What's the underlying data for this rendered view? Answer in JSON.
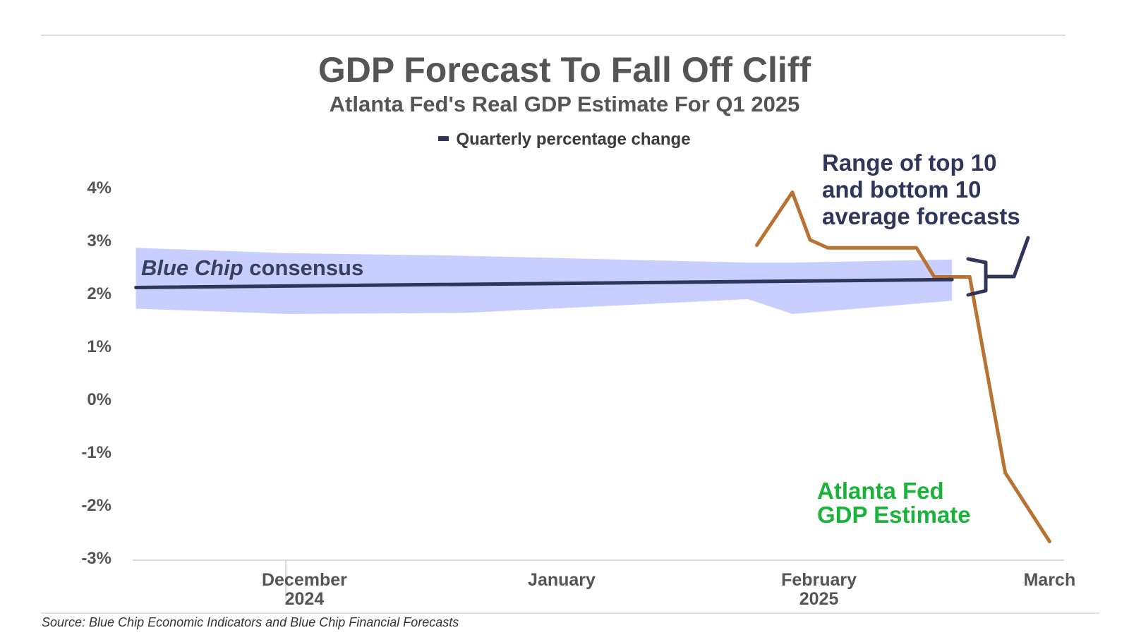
{
  "header": {
    "title": "GDP Forecast To Fall Off Cliff",
    "subtitle": "Atlanta Fed's Real GDP Estimate For Q1 2025",
    "legend_label": "Quarterly percentage change"
  },
  "footer": {
    "source": "Source: Blue Chip Economic Indicators and Blue Chip Financial Forecasts"
  },
  "annotations": {
    "consensus_italic": "Blue Chip",
    "consensus_rest": " consensus",
    "range_line1": "Range of top 10",
    "range_line2": "and bottom 10",
    "range_line3": "average forecasts",
    "atlanta_line1": "Atlanta Fed",
    "atlanta_line2": "GDP Estimate"
  },
  "colors": {
    "consensus_line": "#2f3659",
    "range_band": "#c8cfff",
    "atlanta_line": "#b87333",
    "atlanta_label": "#19b33a",
    "axis_text": "#555555",
    "axis_line": "#d9d9d9"
  },
  "chart_data": {
    "type": "line",
    "title": "GDP Forecast To Fall Off Cliff",
    "subtitle": "Atlanta Fed's Real GDP Estimate For Q1 2025",
    "ylabel": "",
    "xlabel": "",
    "ylim": [
      -3,
      4
    ],
    "y_ticks": [
      4,
      3,
      2,
      1,
      0,
      -1,
      -2,
      -3
    ],
    "y_tick_labels": [
      "4%",
      "3%",
      "2%",
      "1%",
      "0%",
      "-1%",
      "-2%",
      "-3%"
    ],
    "x_range": [
      "2024-11-24",
      "2025-03-09"
    ],
    "x_ticks": [
      {
        "line1": "December",
        "line2": "2024",
        "date": "2024-12-14"
      },
      {
        "line1": "January",
        "line2": "",
        "date": "2025-01-12"
      },
      {
        "line1": "February",
        "line2": "2025",
        "date": "2025-02-10"
      },
      {
        "line1": "March",
        "line2": "",
        "date": "2025-03-08"
      }
    ],
    "grid": false,
    "legend_position": "top-center",
    "series": [
      {
        "name": "Quarterly percentage change",
        "kind": "line",
        "points": [
          {
            "x": "2024-11-25",
            "y": 2.1
          },
          {
            "x": "2025-02-25",
            "y": 2.25
          }
        ]
      },
      {
        "kind": "band",
        "points": [
          {
            "x": "2024-11-25",
            "low": 1.7,
            "high": 2.85
          },
          {
            "x": "2024-12-12",
            "low": 1.6,
            "high": 2.75
          },
          {
            "x": "2025-01-01",
            "low": 1.62,
            "high": 2.7
          },
          {
            "x": "2025-02-02",
            "low": 1.88,
            "high": 2.57
          },
          {
            "x": "2025-02-07",
            "low": 1.6,
            "high": 2.57
          },
          {
            "x": "2025-02-25",
            "low": 1.85,
            "high": 2.63
          }
        ]
      },
      {
        "kind": "line",
        "points": [
          {
            "x": "2025-02-03",
            "y": 2.9
          },
          {
            "x": "2025-02-07",
            "y": 3.9
          },
          {
            "x": "2025-02-09",
            "y": 3.0
          },
          {
            "x": "2025-02-11",
            "y": 2.85
          },
          {
            "x": "2025-02-21",
            "y": 2.85
          },
          {
            "x": "2025-02-23",
            "y": 2.3
          },
          {
            "x": "2025-02-27",
            "y": 2.3
          },
          {
            "x": "2025-03-03",
            "y": -1.4
          },
          {
            "x": "2025-03-08",
            "y": -2.7
          }
        ]
      }
    ]
  }
}
